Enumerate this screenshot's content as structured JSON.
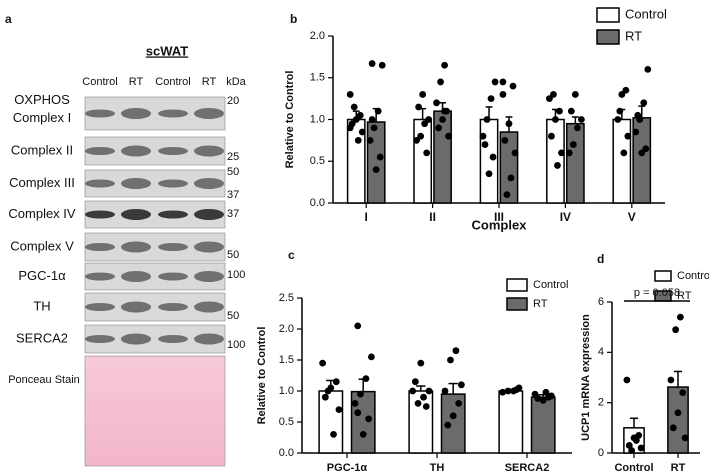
{
  "panel_a": {
    "panel_label": "a",
    "title": "scWAT",
    "lanes": [
      "Control",
      "RT",
      "Control",
      "RT"
    ],
    "unit": "kDa",
    "rows": [
      {
        "label": [
          "OXPHOS",
          "Complex I"
        ],
        "markers": [
          20
        ]
      },
      {
        "label": [
          "Complex II"
        ],
        "markers": [
          25
        ]
      },
      {
        "label": [
          "Complex III"
        ],
        "markers": [
          50,
          37
        ]
      },
      {
        "label": [
          "Complex IV"
        ],
        "markers": [
          37
        ]
      },
      {
        "label": [
          "Complex V"
        ],
        "markers": [
          50
        ]
      },
      {
        "label": [
          "PGC-1α"
        ],
        "markers": [
          100
        ]
      },
      {
        "label": [
          "TH"
        ],
        "markers": [
          50
        ]
      },
      {
        "label": [
          "SERCA2"
        ],
        "markers": [
          100
        ]
      },
      {
        "label": [
          "Ponceau Stain"
        ]
      }
    ]
  },
  "chart_data": [
    {
      "type": "bar",
      "panel_label": "b",
      "y_label": "Relative to Control",
      "x_label": "Complex",
      "categories": [
        "I",
        "II",
        "III",
        "IV",
        "V"
      ],
      "ylim": [
        0,
        2
      ],
      "yticks": [
        {
          "value": 0,
          "label": "0.0"
        },
        0.5,
        {
          "value": 1,
          "label": "1.0"
        },
        1.5,
        {
          "value": 2,
          "label": "2.0"
        }
      ],
      "series": [
        {
          "name": "Control",
          "color": "#ffffff",
          "values": [
            1.0,
            1.0,
            1.0,
            1.0,
            1.0
          ],
          "errors": [
            0.1,
            0.13,
            0.15,
            0.12,
            0.12
          ],
          "points": [
            [
              1.3,
              1.05,
              1.0,
              0.95,
              0.85,
              0.75,
              1.15,
              0.9
            ],
            [
              1.3,
              1.15,
              1.0,
              0.95,
              0.8,
              0.75,
              0.6
            ],
            [
              1.45,
              1.25,
              1.0,
              0.8,
              0.55,
              0.35,
              0.7
            ],
            [
              1.3,
              1.25,
              1.1,
              1.0,
              0.8,
              0.6,
              0.45
            ],
            [
              1.35,
              1.3,
              1.0,
              0.8,
              0.6,
              1.1
            ]
          ]
        },
        {
          "name": "RT",
          "color": "#6b6b6b",
          "values": [
            0.97,
            1.1,
            0.85,
            0.95,
            1.02
          ],
          "errors": [
            0.16,
            0.1,
            0.18,
            0.08,
            0.14
          ],
          "points": [
            [
              1.67,
              1.65,
              1.1,
              0.9,
              0.75,
              0.55,
              0.4,
              1.0
            ],
            [
              1.65,
              1.45,
              1.2,
              1.1,
              1.0,
              0.9,
              0.8,
              1.1
            ],
            [
              1.45,
              1.4,
              0.95,
              0.75,
              0.6,
              0.3,
              0.1,
              1.3
            ],
            [
              1.3,
              1.1,
              1.0,
              0.9,
              0.7,
              0.6
            ],
            [
              1.6,
              1.2,
              1.0,
              0.85,
              0.65,
              0.6,
              1.05
            ]
          ]
        }
      ]
    },
    {
      "type": "bar",
      "panel_label": "c",
      "y_label": "Relative to Control",
      "categories": [
        "PGC-1α",
        "TH",
        "SERCA2"
      ],
      "ylim": [
        0,
        2.5
      ],
      "yticks": [
        {
          "value": 0,
          "label": "0.0"
        },
        0.5,
        {
          "value": 1,
          "label": "1.0"
        },
        1.5,
        {
          "value": 2,
          "label": "2.0"
        },
        2.5
      ],
      "series": [
        {
          "name": "Control",
          "color": "#ffffff",
          "values": [
            1.0,
            1.0,
            1.0
          ],
          "errors": [
            0.17,
            0.08,
            0.02
          ],
          "points": [
            [
              1.45,
              1.15,
              1.05,
              0.9,
              0.7,
              0.3,
              1.0
            ],
            [
              1.45,
              1.15,
              1.0,
              0.9,
              0.8,
              1.0,
              0.75
            ],
            [
              1.05,
              1.0,
              1.0,
              0.98,
              1.02
            ]
          ]
        },
        {
          "name": "RT",
          "color": "#6b6b6b",
          "values": [
            0.99,
            0.95,
            0.9
          ],
          "errors": [
            0.2,
            0.17,
            0.04
          ],
          "points": [
            [
              2.05,
              1.55,
              1.2,
              0.95,
              0.8,
              0.55,
              0.3,
              0.65
            ],
            [
              1.65,
              1.5,
              1.0,
              0.8,
              0.6,
              0.45,
              1.1
            ],
            [
              0.95,
              0.9,
              0.85,
              0.88,
              0.92,
              0.98
            ]
          ]
        }
      ]
    },
    {
      "type": "bar",
      "panel_label": "d",
      "y_label": "UCP1 mRNA expression",
      "annotation": "p = 0.058",
      "categories": [
        "Control",
        "RT"
      ],
      "ylim": [
        0,
        6
      ],
      "yticks": [
        0,
        2,
        4,
        6
      ],
      "series": [
        {
          "name": "Control",
          "color": "#ffffff",
          "values": [
            1.0,
            null
          ],
          "errors": [
            0.38,
            null
          ],
          "points": [
            [
              2.9,
              0.7,
              0.6,
              0.3,
              0.2,
              0.5,
              0.1
            ],
            null
          ]
        },
        {
          "name": "RT",
          "color": "#6b6b6b",
          "values": [
            null,
            2.62
          ],
          "errors": [
            null,
            0.62
          ],
          "points": [
            null,
            [
              5.4,
              4.9,
              2.9,
              2.4,
              1.6,
              1.0,
              0.6
            ]
          ]
        }
      ]
    }
  ]
}
